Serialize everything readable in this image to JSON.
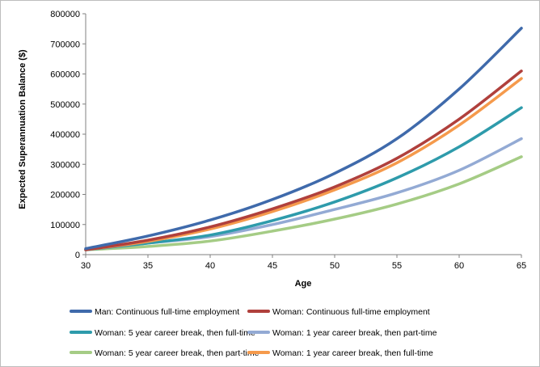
{
  "chart_data": {
    "type": "line",
    "xlabel": "Age",
    "ylabel": "Expected Superannuation Balance ($)",
    "xlim": [
      30,
      65
    ],
    "ylim": [
      0,
      800000
    ],
    "x_ticks": [
      "30",
      "35",
      "40",
      "45",
      "50",
      "55",
      "60",
      "65"
    ],
    "y_ticks": [
      "0",
      "100000",
      "200000",
      "300000",
      "400000",
      "500000",
      "600000",
      "700000",
      "800000"
    ],
    "grid": false,
    "legend_position": "bottom",
    "x": [
      30,
      35,
      40,
      45,
      50,
      55,
      60,
      65
    ],
    "series": [
      {
        "name": "Man: Continuous full-time employment",
        "color": "#3F6AAB",
        "values": [
          20000,
          62000,
          115000,
          183000,
          270000,
          385000,
          550000,
          752000
        ]
      },
      {
        "name": "Woman: Continuous full-time employment",
        "color": "#B0403C",
        "values": [
          16000,
          48000,
          92000,
          152000,
          225000,
          320000,
          450000,
          610000
        ]
      },
      {
        "name": "Woman: 5 year career break, then full-time",
        "color": "#2E9BAB",
        "values": [
          16000,
          38000,
          65000,
          113000,
          175000,
          255000,
          358000,
          488000
        ]
      },
      {
        "name": "Woman: 1 year career break, then part-time",
        "color": "#93AAD4",
        "values": [
          16000,
          38000,
          60000,
          100000,
          150000,
          205000,
          280000,
          385000
        ]
      },
      {
        "name": "Woman: 5 year career break, then part-time",
        "color": "#A5CC85",
        "values": [
          16000,
          27000,
          45000,
          78000,
          118000,
          168000,
          235000,
          325000
        ]
      },
      {
        "name": "Woman: 1 year career break, then full-time",
        "color": "#F59A4C",
        "values": [
          16000,
          44000,
          85000,
          143000,
          215000,
          305000,
          430000,
          585000
        ]
      }
    ]
  }
}
